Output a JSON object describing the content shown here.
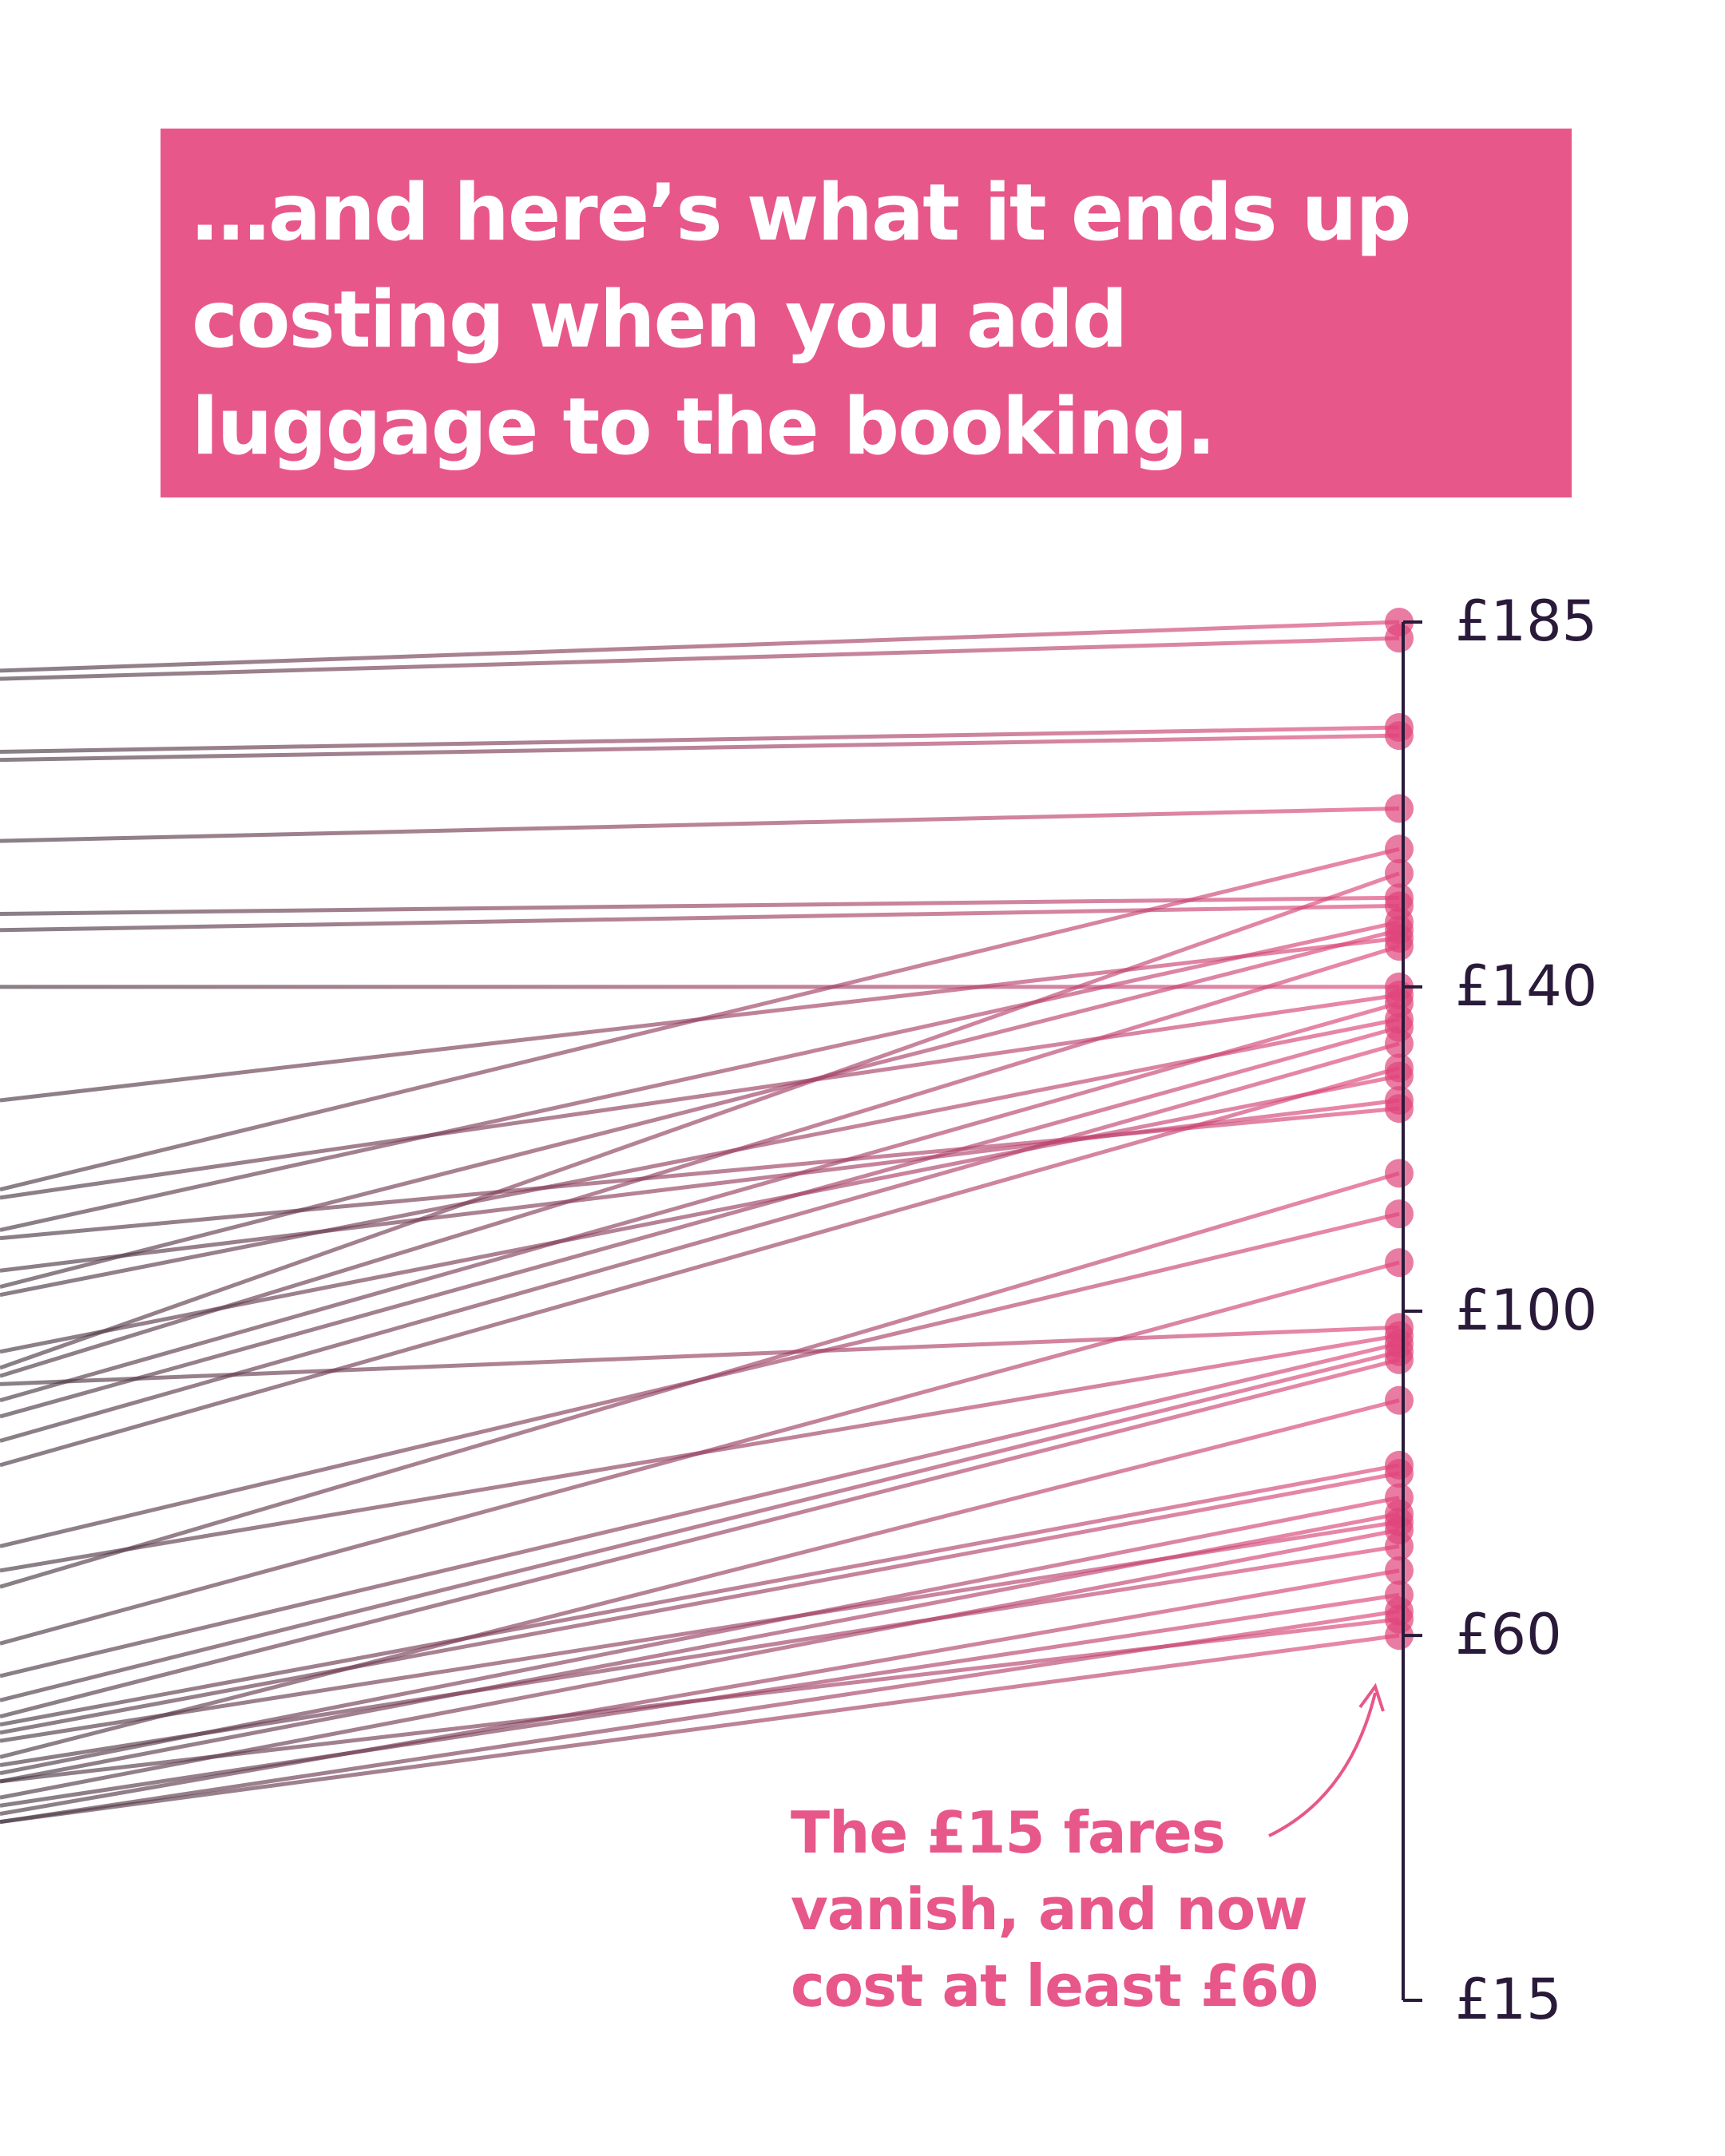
{
  "chart_data": {
    "type": "slope",
    "title": [
      "…and here’s what it ends up",
      "costing when you add",
      "luggage to the booking."
    ],
    "annotation": [
      "The £15 fares",
      "vanish, and now",
      "cost at least £60"
    ],
    "left_edge_values": [
      179,
      178,
      169,
      168,
      158,
      149,
      147,
      140,
      126,
      115,
      114,
      110,
      109,
      105,
      103,
      102,
      93,
      92,
      91,
      89,
      87,
      84,
      81,
      95,
      71,
      68,
      66,
      59,
      55,
      52,
      49,
      48,
      50,
      45,
      43,
      42,
      47,
      40,
      44,
      38,
      39,
      37,
      42,
      37
    ],
    "values": [
      185,
      183,
      172,
      171,
      162,
      151,
      150,
      140,
      146,
      157,
      139,
      148,
      125,
      126,
      147,
      136,
      154,
      145,
      98,
      138,
      135,
      133,
      130,
      129,
      112,
      97,
      117,
      106,
      96,
      95,
      81,
      80,
      94,
      89,
      77,
      75,
      74,
      73,
      71,
      68,
      65,
      63,
      62,
      60
    ],
    "ylim": [
      15,
      185
    ],
    "yticks": [
      {
        "value": 185,
        "label": "£185"
      },
      {
        "value": 140,
        "label": "£140"
      },
      {
        "value": 100,
        "label": "£100"
      },
      {
        "value": 60,
        "label": "£60"
      },
      {
        "value": 15,
        "label": "£15"
      }
    ],
    "line_color_start": "#4a3a45",
    "color": "#e0457b",
    "title_background": "#e8578a",
    "axis_color": "#2a1a3a"
  }
}
